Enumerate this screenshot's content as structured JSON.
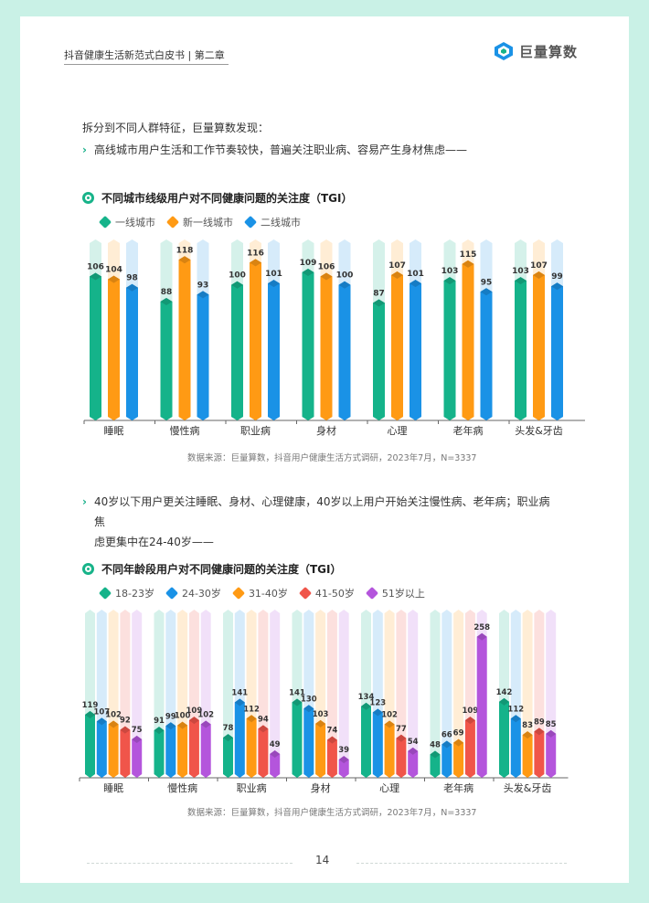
{
  "header": {
    "title": "抖音健康生活新范式白皮书 | 第二章",
    "logo_text": "巨量算数"
  },
  "intro": "拆分到不同人群特征，巨量算数发现：",
  "bullet1": "高线城市用户生活和工作节奏较快，普遍关注职业病、容易产生身材焦虑——",
  "bullet2_line1": "40岁以下用户更关注睡眠、身材、心理健康，40岁以上用户开始关注慢性病、老年病；职业病焦",
  "bullet2_line2": "虑更集中在24-40岁——",
  "chart_data": [
    {
      "type": "bar",
      "title": "不同城市线级用户对不同健康问题的关注度（TGI）",
      "categories": [
        "睡眠",
        "慢性病",
        "职业病",
        "身材",
        "心理",
        "老年病",
        "头发&牙齿"
      ],
      "series": [
        {
          "name": "一线城市",
          "color": "#15b38a",
          "values": [
            106,
            88,
            100,
            109,
            87,
            103,
            103
          ]
        },
        {
          "name": "新一线城市",
          "color": "#ff9a14",
          "values": [
            104,
            118,
            116,
            106,
            107,
            115,
            107
          ]
        },
        {
          "name": "二线城市",
          "color": "#1a92e6",
          "values": [
            98,
            93,
            101,
            100,
            101,
            95,
            99
          ]
        }
      ],
      "ylim": [
        0,
        130
      ],
      "source": "数据来源：巨量算数，抖音用户健康生活方式调研，2023年7月，N=3337"
    },
    {
      "type": "bar",
      "title": "不同年龄段用户对不同健康问题的关注度（TGI）",
      "categories": [
        "睡眠",
        "慢性病",
        "职业病",
        "身材",
        "心理",
        "老年病",
        "头发&牙齿"
      ],
      "series": [
        {
          "name": "18-23岁",
          "color": "#15b38a",
          "values": [
            119,
            91,
            78,
            141,
            134,
            48,
            142
          ]
        },
        {
          "name": "24-30岁",
          "color": "#1a92e6",
          "values": [
            107,
            99,
            141,
            130,
            123,
            66,
            112
          ]
        },
        {
          "name": "31-40岁",
          "color": "#ff9a14",
          "values": [
            102,
            100,
            112,
            103,
            102,
            69,
            83
          ]
        },
        {
          "name": "41-50岁",
          "color": "#f0554a",
          "values": [
            92,
            109,
            94,
            74,
            77,
            109,
            89
          ]
        },
        {
          "name": "51岁以上",
          "color": "#b455dc",
          "values": [
            75,
            102,
            49,
            39,
            54,
            258,
            85
          ]
        }
      ],
      "ylim": [
        0,
        300
      ],
      "source": "数据来源：巨量算数，抖音用户健康生活方式调研，2023年7月，N=3337"
    }
  ],
  "page_number": "14"
}
